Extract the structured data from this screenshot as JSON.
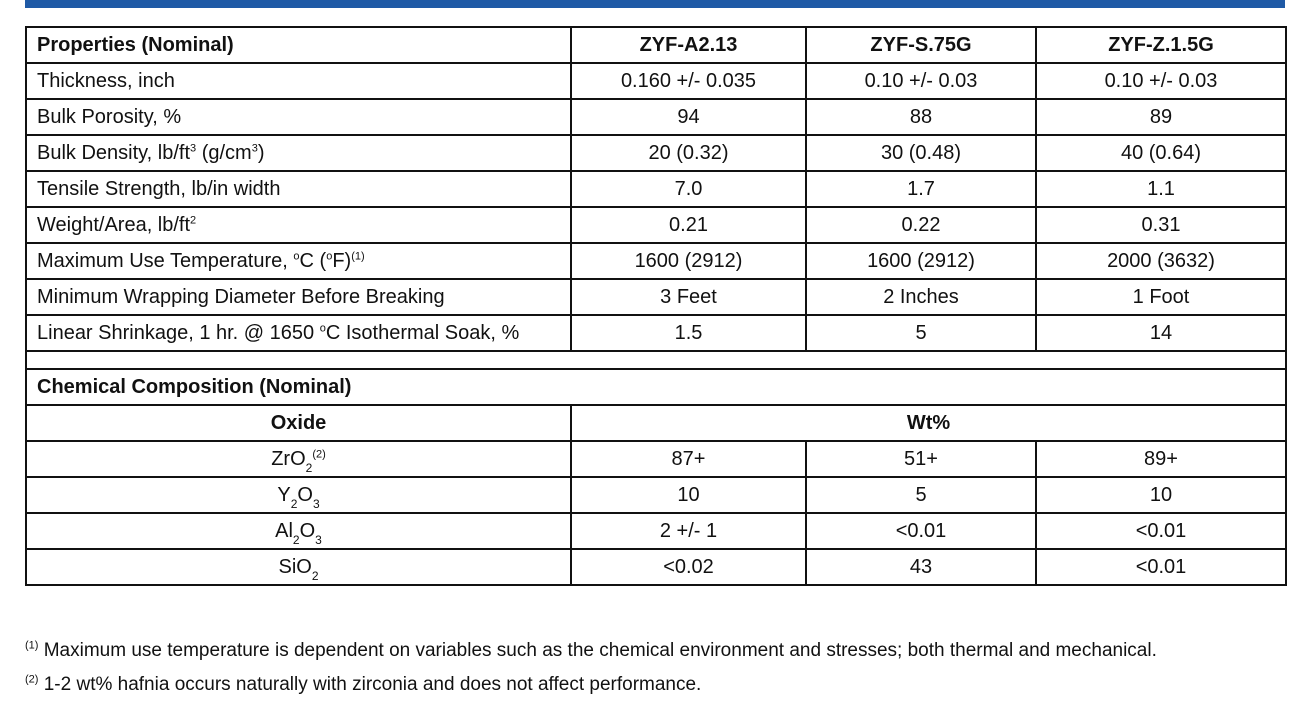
{
  "colors": {
    "accent_bar": "#1f5aa6",
    "border": "#111111"
  },
  "properties_table": {
    "header": {
      "label": "Properties (Nominal)",
      "products": [
        "ZYF-A2.13",
        "ZYF-S.75G",
        "ZYF-Z.1.5G"
      ]
    },
    "rows": [
      {
        "label": "Thickness, inch",
        "values": [
          "0.160 +/- 0.035",
          "0.10 +/- 0.03",
          "0.10 +/- 0.03"
        ]
      },
      {
        "label": "Bulk Porosity, %",
        "values": [
          "94",
          "88",
          "89"
        ]
      },
      {
        "label_main": "Bulk Density, lb/ft",
        "label_sup": "3",
        "label_mid": " (g/cm",
        "label_sup2": "3",
        "label_end": ")",
        "values": [
          "20 (0.32)",
          "30 (0.48)",
          "40 (0.64)"
        ]
      },
      {
        "label": "Tensile Strength, lb/in width",
        "values": [
          "7.0",
          "1.7",
          "1.1"
        ]
      },
      {
        "label_main": "Weight/Area, lb/ft",
        "label_sup": "2",
        "values": [
          "0.21",
          "0.22",
          "0.31"
        ]
      },
      {
        "label_main": "Maximum Use Temperature, ",
        "label_sup": "o",
        "label_mid": "C (",
        "label_sup2": "o",
        "label_mid2": "F)",
        "label_sup3": "(1)",
        "values": [
          "1600 (2912)",
          "1600 (2912)",
          "2000 (3632)"
        ]
      },
      {
        "label": "Minimum Wrapping Diameter Before Breaking",
        "values": [
          "3 Feet",
          "2 Inches",
          "1 Foot"
        ]
      },
      {
        "label_main": "Linear Shrinkage, 1 hr. @ 1650 ",
        "label_sup": "o",
        "label_end": "C Isothermal Soak, %",
        "values": [
          "1.5",
          "5",
          "14"
        ]
      }
    ]
  },
  "chemical_table": {
    "title": "Chemical Composition (Nominal)",
    "oxide_header": "Oxide",
    "wt_header": "Wt%",
    "rows": [
      {
        "base": "ZrO",
        "sub1": "2",
        "sup": "(2)",
        "values": [
          "87+",
          "51+",
          "89+"
        ]
      },
      {
        "base": "Y",
        "sub1": "2",
        "base2": "O",
        "sub2": "3",
        "values": [
          "10",
          "5",
          "10"
        ]
      },
      {
        "base": "Al",
        "sub1": "2",
        "base2": "O",
        "sub2": "3",
        "values": [
          "2 +/- 1",
          "<0.01",
          "<0.01"
        ]
      },
      {
        "base": "SiO",
        "sub1": "2",
        "values": [
          "<0.02",
          "43",
          "<0.01"
        ]
      }
    ]
  },
  "footnotes": [
    {
      "mark": "(1)",
      "text": " Maximum use temperature is dependent on variables such as the chemical environment and stresses; both thermal and mechanical."
    },
    {
      "mark": "(2)",
      "text": " 1-2 wt% hafnia occurs naturally with zirconia and does not affect performance."
    }
  ]
}
